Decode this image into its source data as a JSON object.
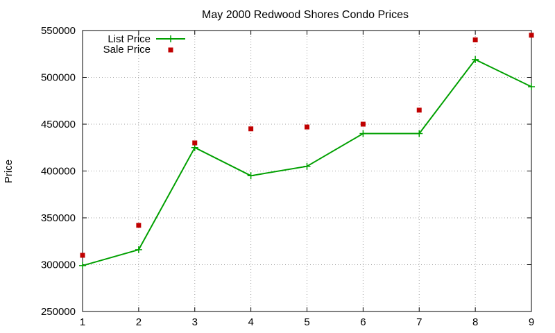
{
  "chart_data": {
    "type": "line",
    "title": "May 2000 Redwood Shores Condo Prices",
    "xlabel": "",
    "ylabel": "Price",
    "x": [
      1,
      2,
      3,
      4,
      5,
      6,
      7,
      8,
      9
    ],
    "xlim": [
      1,
      9
    ],
    "ylim": [
      250000,
      550000
    ],
    "xticks": [
      "1",
      "2",
      "3",
      "4",
      "5",
      "6",
      "7",
      "8",
      "9"
    ],
    "yticks": [
      "250000",
      "300000",
      "350000",
      "400000",
      "450000",
      "500000",
      "550000"
    ],
    "grid": true,
    "legend_position": "top-left",
    "series": [
      {
        "name": "List Price",
        "style": "lines-and-points",
        "color": "#00a000",
        "values": [
          299000,
          316000,
          425000,
          395000,
          405000,
          440000,
          440000,
          519000,
          490000
        ]
      },
      {
        "name": "Sale Price",
        "style": "points",
        "color": "#c00000",
        "values": [
          310000,
          342000,
          430000,
          445000,
          447000,
          450000,
          465000,
          540000,
          545000
        ]
      }
    ]
  }
}
